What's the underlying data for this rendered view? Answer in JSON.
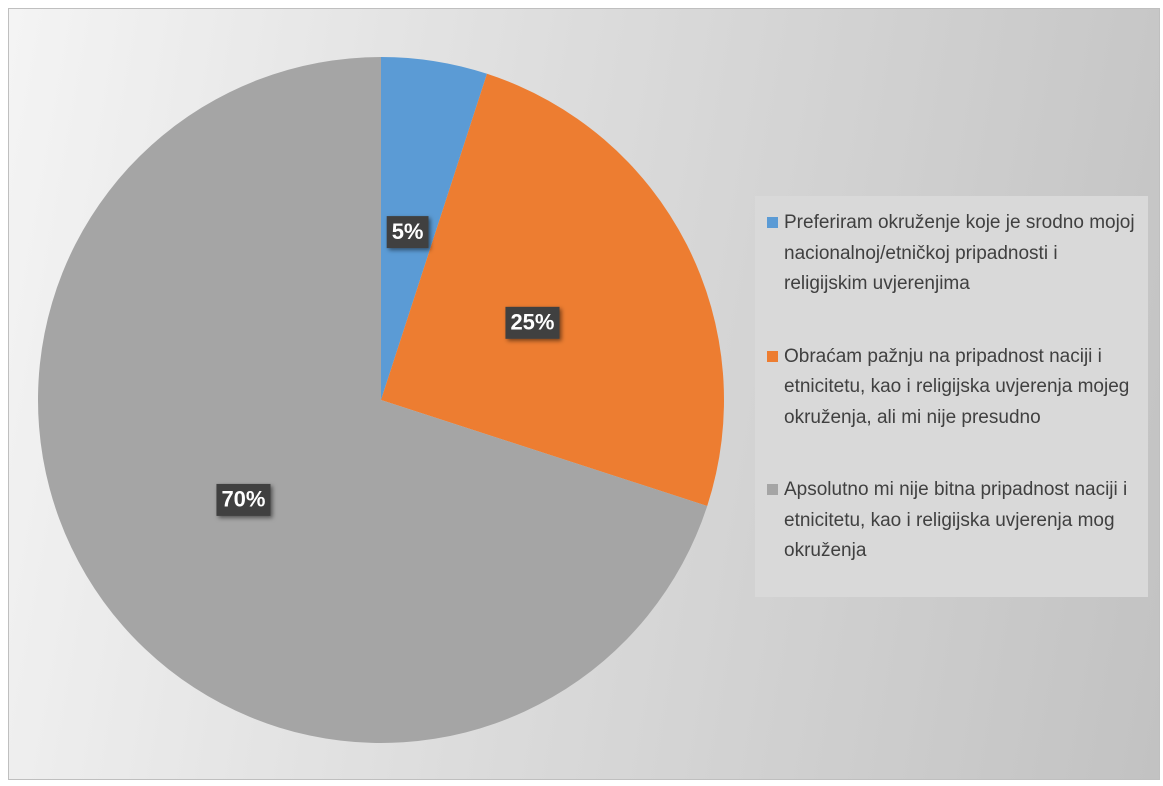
{
  "chart_data": {
    "type": "pie",
    "categories": [
      "Preferiram okruženje koje je srodno mojoj nacionalnoj/etničkoj pripadnosti i religijskim uvjerenjima",
      "Obraćam pažnju na pripadnost naciji i etnicitetu, kao i religijska uvjerenja mojeg okruženja, ali mi nije presudno",
      "Apsolutno mi nije bitna pripadnost naciji i etnicitetu, kao i religijska uvjerenja mog okruženja"
    ],
    "values": [
      5,
      25,
      70
    ],
    "value_labels": [
      "5%",
      "25%",
      "70%"
    ],
    "colors": [
      "#5b9bd5",
      "#ed7d31",
      "#a5a5a5"
    ],
    "legend": "right"
  }
}
